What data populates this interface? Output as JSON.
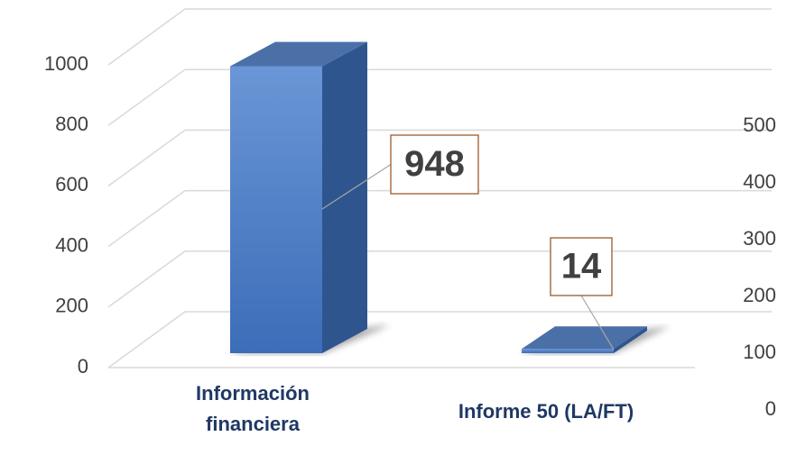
{
  "chart_data": {
    "type": "bar3d",
    "categories": [
      "Información financiera",
      "Informe 50 (LA/FT)"
    ],
    "values": [
      948,
      14
    ],
    "color": "#4a7cc7",
    "ylim": [
      0,
      1000
    ],
    "yticks": [
      0,
      200,
      400,
      600,
      800,
      1000
    ],
    "y2lim": [
      0,
      500
    ],
    "y2ticks": [
      0,
      100,
      200,
      300,
      400,
      500
    ],
    "grid": true
  }
}
